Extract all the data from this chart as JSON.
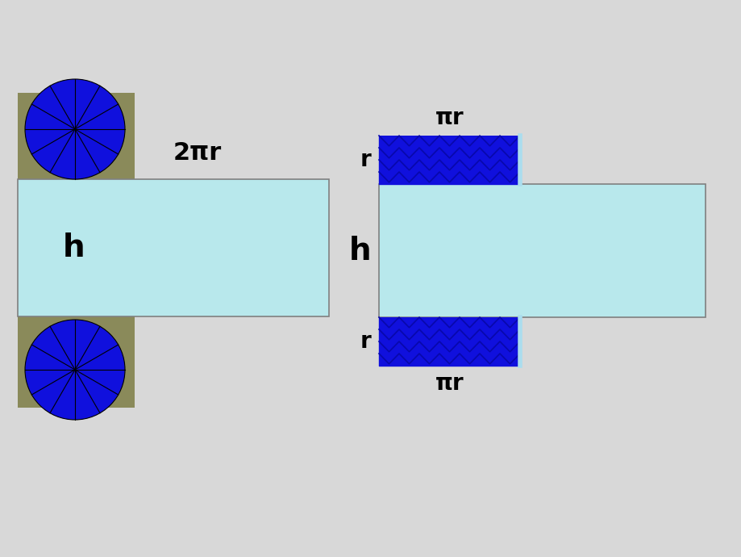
{
  "bg_color": "#d8d8d8",
  "light_blue": "#b8e8ec",
  "olive_green": "#8a8a5a",
  "blue_fill": "#1010dd",
  "dark_blue_line": "#0808aa",
  "label_2pir": "2πr",
  "label_h_left": "h",
  "label_h_right": "h",
  "label_pir_top": "πr",
  "label_pir_bot": "πr",
  "label_r_top": "r",
  "label_r_bot": "r"
}
